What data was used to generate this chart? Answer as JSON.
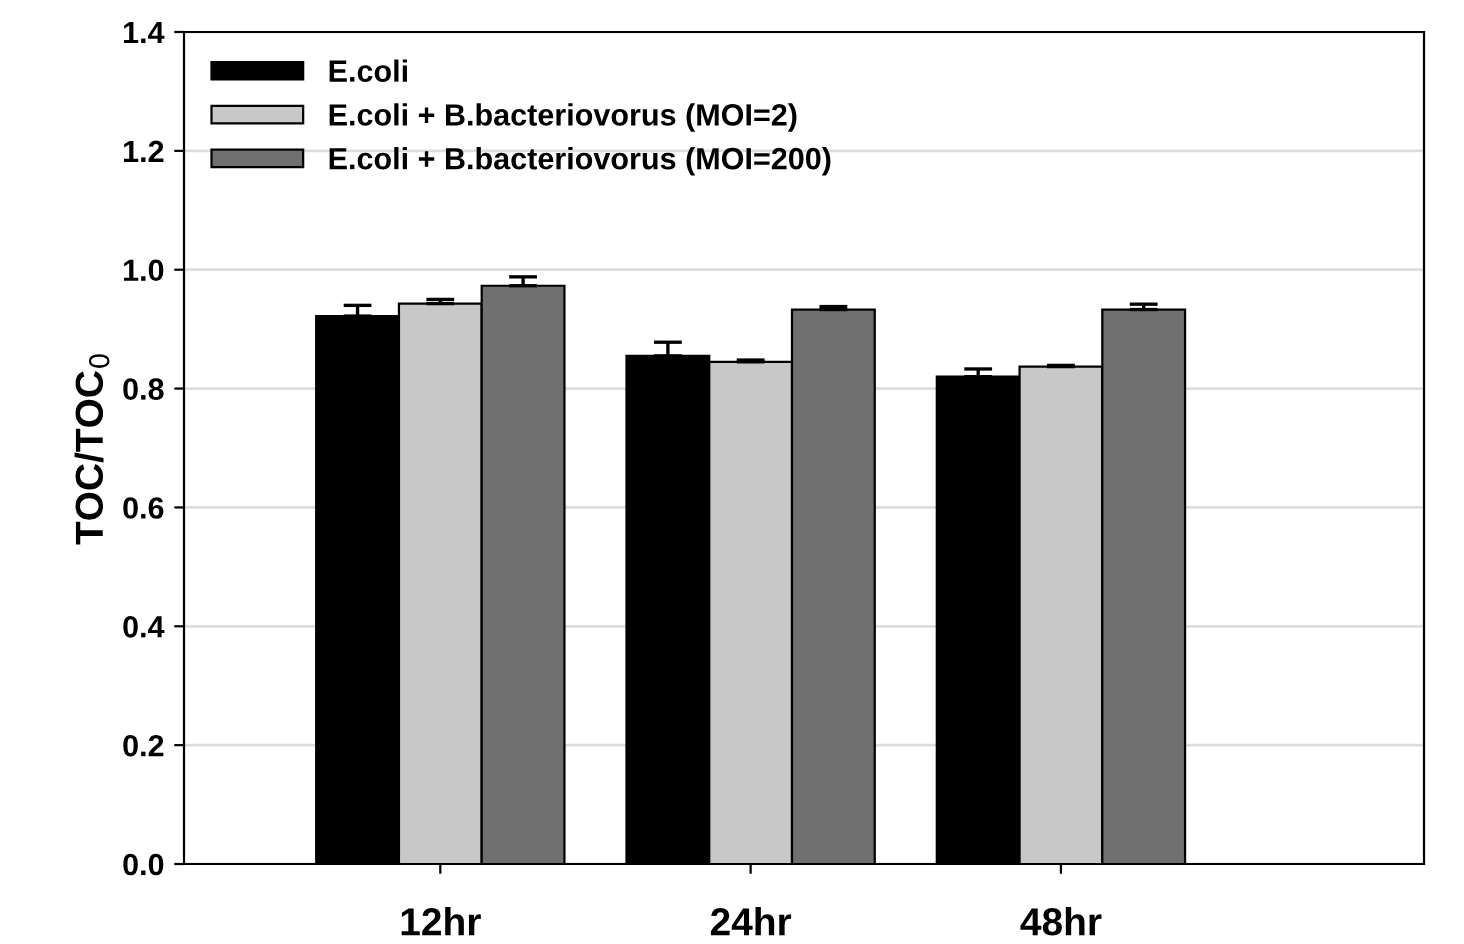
{
  "chart_data": {
    "type": "bar",
    "ylabel": "TOC/TOC$_{0}$",
    "categories": [
      "12hr",
      "24hr",
      "48hr"
    ],
    "series": [
      {
        "name": "E.coli",
        "color": "#000000",
        "values": [
          0.922,
          0.855,
          0.82
        ],
        "errors": [
          [
            0.922,
            0.94
          ],
          [
            0.855,
            0.878
          ],
          [
            0.82,
            0.833
          ]
        ]
      },
      {
        "name": "E.coli + B.bacteriovorus (MOI=2)",
        "color": "#c8c8c8",
        "values": [
          0.943,
          0.845,
          0.837
        ],
        "errors": [
          [
            0.943,
            0.95
          ],
          [
            0.845,
            0.848
          ],
          [
            0.837,
            0.839
          ]
        ]
      },
      {
        "name": "E.coli + B.bacteriovorus (MOI=200)",
        "color": "#707070",
        "values": [
          0.973,
          0.933,
          0.933
        ],
        "errors": [
          [
            0.973,
            0.988
          ],
          [
            0.933,
            0.938
          ],
          [
            0.933,
            0.942
          ]
        ]
      }
    ],
    "ylim": [
      0,
      1.4
    ],
    "yticks": [
      {
        "value": 0,
        "label": "0.0"
      },
      0.2,
      0.4,
      0.6,
      0.8,
      {
        "value": 1,
        "label": "1.0"
      },
      1.2,
      1.4
    ],
    "grid": "y",
    "legend": "top left"
  }
}
